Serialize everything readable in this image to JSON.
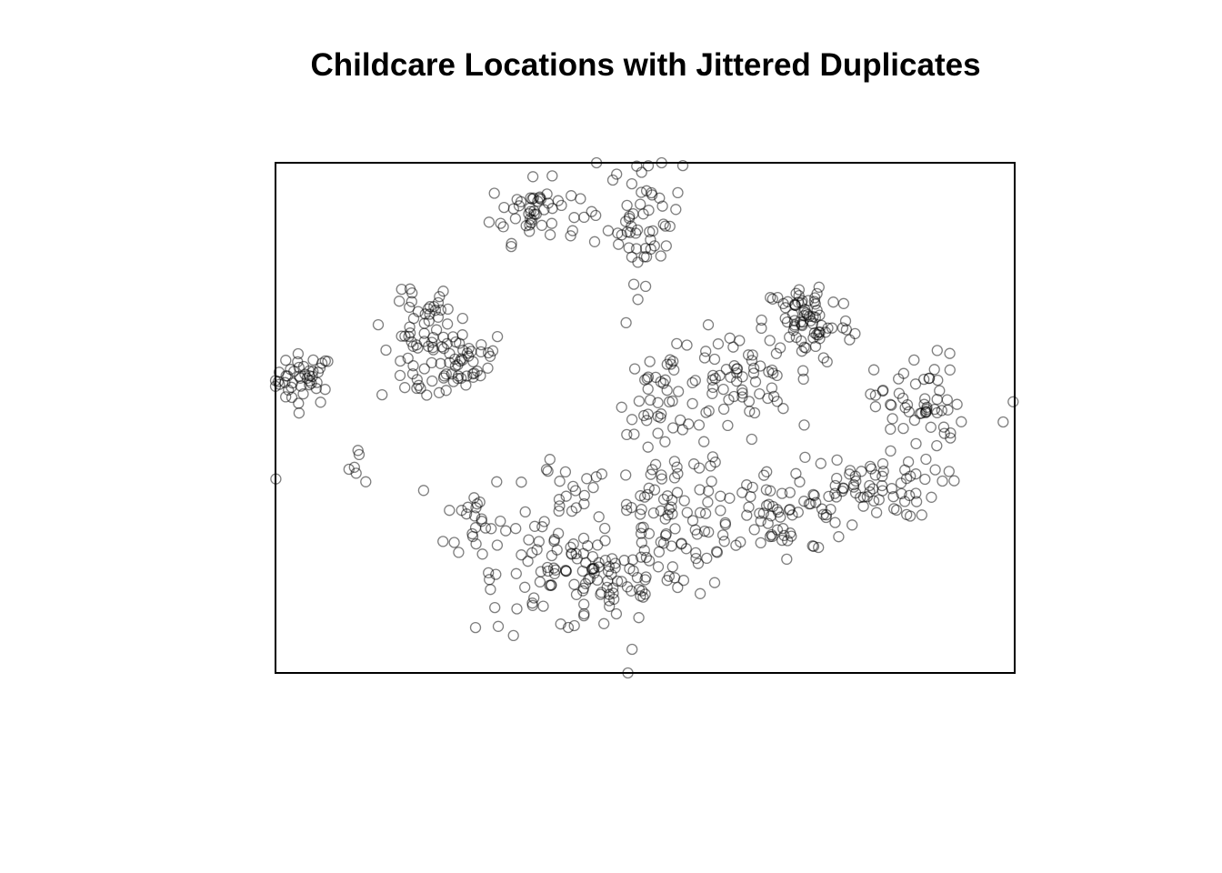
{
  "chart_data": {
    "type": "scatter",
    "title": "Childcare Locations with Jittered Duplicates",
    "xlabel": "",
    "ylabel": "",
    "xlim": [
      0,
      100
    ],
    "ylim": [
      0,
      100
    ],
    "axes_shown": false,
    "grid": false,
    "legend": "none",
    "marker": "open-circle",
    "point_color": "#000000",
    "point_alpha": 0.5,
    "clusters": [
      {
        "cx": 3.8,
        "cy": 57.5,
        "sx": 2.0,
        "sy": 2.5,
        "n": 45
      },
      {
        "cx": 11.5,
        "cy": 41.5,
        "sx": 1.0,
        "sy": 2.0,
        "n": 6
      },
      {
        "cx": 20.5,
        "cy": 62.0,
        "sx": 3.2,
        "sy": 5.0,
        "n": 60
      },
      {
        "cx": 20.5,
        "cy": 72.0,
        "sx": 1.5,
        "sy": 3.0,
        "n": 15
      },
      {
        "cx": 25.5,
        "cy": 61.5,
        "sx": 3.0,
        "sy": 3.0,
        "n": 30
      },
      {
        "cx": 27.0,
        "cy": 30.0,
        "sx": 2.0,
        "sy": 5.0,
        "n": 25
      },
      {
        "cx": 35.0,
        "cy": 90.5,
        "sx": 3.0,
        "sy": 3.0,
        "n": 50
      },
      {
        "cx": 50.0,
        "cy": 89.0,
        "sx": 2.5,
        "sy": 6.0,
        "n": 55
      },
      {
        "cx": 37.0,
        "cy": 20.0,
        "sx": 5.0,
        "sy": 6.0,
        "n": 70
      },
      {
        "cx": 45.5,
        "cy": 17.5,
        "sx": 4.0,
        "sy": 4.0,
        "n": 50
      },
      {
        "cx": 53.5,
        "cy": 30.0,
        "sx": 4.0,
        "sy": 8.0,
        "n": 80
      },
      {
        "cx": 52.5,
        "cy": 55.0,
        "sx": 3.0,
        "sy": 4.0,
        "n": 40
      },
      {
        "cx": 62.0,
        "cy": 57.0,
        "sx": 4.0,
        "sy": 5.0,
        "n": 60
      },
      {
        "cx": 72.0,
        "cy": 69.0,
        "sx": 3.0,
        "sy": 4.0,
        "n": 75
      },
      {
        "cx": 67.0,
        "cy": 31.0,
        "sx": 6.0,
        "sy": 4.5,
        "n": 80
      },
      {
        "cx": 80.0,
        "cy": 36.5,
        "sx": 5.0,
        "sy": 3.0,
        "n": 60
      },
      {
        "cx": 87.0,
        "cy": 52.5,
        "sx": 3.0,
        "sy": 5.0,
        "n": 55
      },
      {
        "cx": 40.0,
        "cy": 37.0,
        "sx": 3.0,
        "sy": 3.0,
        "n": 15
      },
      {
        "cx": 0.0,
        "cy": 38.0,
        "sx": 0.1,
        "sy": 0.1,
        "n": 1
      },
      {
        "cx": 100.0,
        "cy": 53.0,
        "sx": 0.1,
        "sy": 0.1,
        "n": 1
      },
      {
        "cx": 47.5,
        "cy": 0.0,
        "sx": 0.1,
        "sy": 0.1,
        "n": 1
      },
      {
        "cx": 43.5,
        "cy": 100.0,
        "sx": 0.1,
        "sy": 0.1,
        "n": 1
      },
      {
        "cx": 98.5,
        "cy": 49.0,
        "sx": 0.1,
        "sy": 0.1,
        "n": 1
      }
    ]
  }
}
